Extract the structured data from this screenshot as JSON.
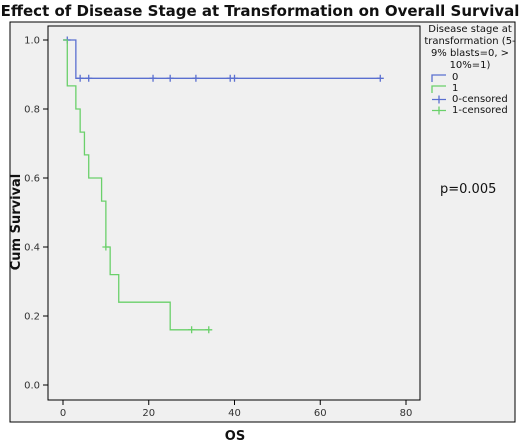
{
  "chart_data": {
    "type": "line",
    "title": "Effect of Disease Stage at Transformation on Overall Survival",
    "xlabel": "OS",
    "ylabel": "Cum Survival",
    "xlim": [
      0,
      80
    ],
    "ylim": [
      0,
      1.0
    ],
    "x_ticks": [
      0,
      20,
      40,
      60,
      80
    ],
    "y_ticks": [
      0.0,
      0.2,
      0.4,
      0.6,
      0.8,
      1.0
    ],
    "grid": false,
    "legend_title": "Disease stage at transformation (5-9% blasts=0, > 10%=1)",
    "legend_position": "right",
    "legend": [
      "0",
      "1",
      "0-censored",
      "1-censored"
    ],
    "annotation": "p=0.005",
    "series": [
      {
        "name": "0",
        "color": "#5a6fd0",
        "step_x": [
          0,
          3,
          74
        ],
        "step_y": [
          1.0,
          0.889,
          0.889
        ],
        "censored_x": [
          1,
          4,
          6,
          21,
          25,
          31,
          39,
          40,
          74
        ],
        "censored_y": [
          1.0,
          0.889,
          0.889,
          0.889,
          0.889,
          0.889,
          0.889,
          0.889,
          0.889
        ]
      },
      {
        "name": "1",
        "color": "#6ad06a",
        "step_x": [
          0,
          1,
          3,
          4,
          5,
          6,
          9,
          10,
          11,
          13,
          25,
          34
        ],
        "step_y": [
          1.0,
          0.867,
          0.8,
          0.733,
          0.667,
          0.6,
          0.533,
          0.4,
          0.32,
          0.24,
          0.16,
          0.16
        ],
        "censored_x": [
          10,
          30,
          34
        ],
        "censored_y": [
          0.4,
          0.16,
          0.16
        ]
      }
    ]
  }
}
